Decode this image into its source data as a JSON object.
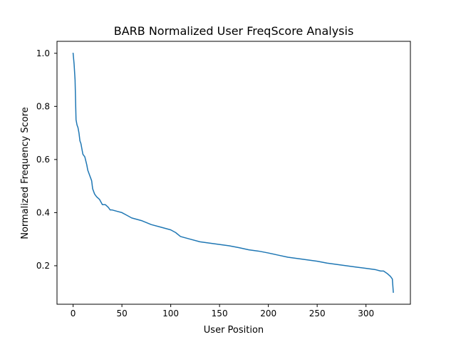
{
  "chart_data": {
    "type": "line",
    "title": "BARB Normalized User FreqScore Analysis",
    "xlabel": "User Position",
    "ylabel": "Normalized Frequency Score",
    "xlim": [
      -16.5,
      345.5
    ],
    "ylim": [
      0.055,
      1.045
    ],
    "xticks": [
      0,
      50,
      100,
      150,
      200,
      250,
      300
    ],
    "yticks": [
      0.2,
      0.4,
      0.6,
      0.8,
      1.0
    ],
    "xtick_labels": [
      "0",
      "50",
      "100",
      "150",
      "200",
      "250",
      "300"
    ],
    "ytick_labels": [
      "0.2",
      "0.4",
      "0.6",
      "0.8",
      "1.0"
    ],
    "grid": false,
    "legend": "none",
    "series": [
      {
        "color": "#1f77b4",
        "x": [
          0,
          1,
          2,
          3,
          4,
          5,
          6,
          7,
          8,
          10,
          12,
          14,
          15,
          17,
          19,
          20,
          22,
          24,
          27,
          30,
          33,
          36,
          38,
          40,
          45,
          50,
          55,
          60,
          65,
          70,
          80,
          90,
          100,
          105,
          110,
          120,
          130,
          140,
          150,
          160,
          170,
          180,
          190,
          200,
          210,
          220,
          230,
          240,
          250,
          260,
          270,
          280,
          290,
          300,
          310,
          315,
          318,
          322,
          325,
          327,
          328
        ],
        "y": [
          1.0,
          0.96,
          0.9,
          0.75,
          0.73,
          0.72,
          0.7,
          0.67,
          0.66,
          0.62,
          0.61,
          0.58,
          0.56,
          0.54,
          0.52,
          0.49,
          0.47,
          0.46,
          0.45,
          0.43,
          0.43,
          0.42,
          0.41,
          0.41,
          0.405,
          0.4,
          0.39,
          0.38,
          0.375,
          0.37,
          0.355,
          0.345,
          0.335,
          0.325,
          0.31,
          0.3,
          0.29,
          0.285,
          0.28,
          0.275,
          0.268,
          0.26,
          0.255,
          0.248,
          0.24,
          0.232,
          0.227,
          0.222,
          0.217,
          0.21,
          0.205,
          0.2,
          0.195,
          0.19,
          0.185,
          0.18,
          0.18,
          0.17,
          0.16,
          0.15,
          0.1
        ]
      }
    ]
  }
}
